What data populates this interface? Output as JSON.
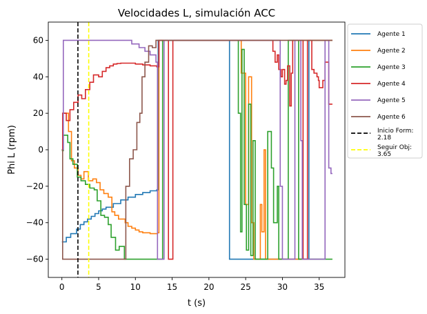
{
  "chart_data": {
    "type": "line",
    "title": "Velocidades L, simulación ACC",
    "xlabel": "t (s)",
    "ylabel": "Phi L (rpm)",
    "xlim": [
      -1.85,
      38.5
    ],
    "ylim": [
      -70,
      70
    ],
    "xticks": [
      0,
      5,
      10,
      15,
      20,
      25,
      30,
      35
    ],
    "yticks": [
      -60,
      -40,
      -20,
      0,
      20,
      40,
      60
    ],
    "grid": false,
    "legend_position": "outside-right",
    "series": [
      {
        "name": "Agente 1",
        "color": "#1f77b4",
        "step": true,
        "points": [
          [
            0,
            -50.5
          ],
          [
            0.6,
            -48
          ],
          [
            1.2,
            -46
          ],
          [
            2.0,
            -43.5
          ],
          [
            2.5,
            -41
          ],
          [
            3.0,
            -39.5
          ],
          [
            3.5,
            -38
          ],
          [
            4.0,
            -36.5
          ],
          [
            4.5,
            -35
          ],
          [
            5.0,
            -33.5
          ],
          [
            5.5,
            -32.5
          ],
          [
            6.0,
            -31.5
          ],
          [
            7.0,
            -29.5
          ],
          [
            8.0,
            -27.5
          ],
          [
            9.0,
            -26
          ],
          [
            10.0,
            -24.5
          ],
          [
            11.0,
            -23.5
          ],
          [
            12.0,
            -22.5
          ],
          [
            12.9,
            -22
          ],
          [
            13.1,
            60
          ],
          [
            22.7,
            60
          ],
          [
            22.8,
            -60
          ],
          [
            33.5,
            -60
          ],
          [
            33.6,
            60
          ],
          [
            35.0,
            60
          ],
          [
            36.8,
            60
          ]
        ]
      },
      {
        "name": "Agente 2",
        "color": "#ff7f0e",
        "step": true,
        "points": [
          [
            0,
            0
          ],
          [
            0.1,
            20
          ],
          [
            0.9,
            10
          ],
          [
            1.3,
            -6
          ],
          [
            1.7,
            -10
          ],
          [
            2.2,
            -14
          ],
          [
            2.6,
            -16
          ],
          [
            3.0,
            -12
          ],
          [
            3.6,
            -17
          ],
          [
            4.2,
            -16
          ],
          [
            4.7,
            -18
          ],
          [
            5.2,
            -22
          ],
          [
            5.7,
            -24
          ],
          [
            6.3,
            -26
          ],
          [
            6.8,
            -34
          ],
          [
            7.2,
            -36
          ],
          [
            7.7,
            -38
          ],
          [
            8.4,
            -38
          ],
          [
            8.6,
            -40
          ],
          [
            9.0,
            -42
          ],
          [
            9.5,
            -43
          ],
          [
            10.0,
            -44
          ],
          [
            10.5,
            -45
          ],
          [
            11.0,
            -45.5
          ],
          [
            12.0,
            -46
          ],
          [
            13.0,
            -45.5
          ],
          [
            13.2,
            60
          ],
          [
            24.2,
            60
          ],
          [
            24.4,
            42
          ],
          [
            24.8,
            42
          ],
          [
            25.0,
            -30
          ],
          [
            25.4,
            40
          ],
          [
            25.8,
            -40
          ],
          [
            26.1,
            -60
          ],
          [
            26.8,
            -60
          ],
          [
            27.0,
            -30
          ],
          [
            27.2,
            -45
          ],
          [
            27.5,
            0
          ],
          [
            27.7,
            -60
          ],
          [
            32.6,
            -60
          ],
          [
            32.8,
            60
          ],
          [
            36.8,
            60
          ]
        ]
      },
      {
        "name": "Agente 3",
        "color": "#2ca02c",
        "step": true,
        "points": [
          [
            0,
            -0.5
          ],
          [
            0.2,
            8
          ],
          [
            0.8,
            4
          ],
          [
            1.1,
            -5
          ],
          [
            1.5,
            -8
          ],
          [
            2.1,
            -15
          ],
          [
            2.6,
            -17
          ],
          [
            3.2,
            -19
          ],
          [
            3.8,
            -21
          ],
          [
            4.4,
            -22
          ],
          [
            4.8,
            -28
          ],
          [
            5.3,
            -36
          ],
          [
            5.8,
            -37
          ],
          [
            6.3,
            -41
          ],
          [
            6.7,
            -48
          ],
          [
            7.3,
            -55
          ],
          [
            7.8,
            -53
          ],
          [
            8.5,
            -60
          ],
          [
            13.4,
            -60
          ],
          [
            13.7,
            60
          ],
          [
            23.7,
            60
          ],
          [
            24.0,
            20
          ],
          [
            24.3,
            -45
          ],
          [
            24.5,
            55
          ],
          [
            24.8,
            -30
          ],
          [
            25.1,
            -55
          ],
          [
            25.4,
            25
          ],
          [
            25.7,
            -58
          ],
          [
            26.0,
            5
          ],
          [
            26.3,
            -60
          ],
          [
            27.7,
            -60
          ],
          [
            28.0,
            10
          ],
          [
            28.5,
            -10
          ],
          [
            28.8,
            -40
          ],
          [
            29.3,
            -20
          ],
          [
            29.5,
            -60
          ],
          [
            30.5,
            -60
          ],
          [
            30.8,
            60
          ],
          [
            32.0,
            60
          ],
          [
            32.2,
            -60
          ],
          [
            36.8,
            -60
          ]
        ]
      },
      {
        "name": "Agente 4",
        "color": "#d62728",
        "step": true,
        "points": [
          [
            0,
            0
          ],
          [
            0.1,
            20
          ],
          [
            0.6,
            16
          ],
          [
            1.1,
            22
          ],
          [
            1.6,
            26
          ],
          [
            2.2,
            30
          ],
          [
            2.7,
            28
          ],
          [
            3.2,
            33
          ],
          [
            3.8,
            37
          ],
          [
            4.3,
            41
          ],
          [
            5.0,
            40
          ],
          [
            5.5,
            43
          ],
          [
            6.0,
            45
          ],
          [
            6.5,
            46
          ],
          [
            7.0,
            47
          ],
          [
            7.5,
            47.3
          ],
          [
            8.0,
            47.5
          ],
          [
            9.0,
            47.5
          ],
          [
            10.0,
            47
          ],
          [
            11.0,
            46.5
          ],
          [
            12.0,
            46
          ],
          [
            12.9,
            45.5
          ],
          [
            13.2,
            60
          ],
          [
            14.3,
            60
          ],
          [
            14.5,
            -60
          ],
          [
            14.8,
            -60
          ],
          [
            15.1,
            60
          ],
          [
            28.5,
            60
          ],
          [
            28.7,
            54
          ],
          [
            29.0,
            48
          ],
          [
            29.3,
            52
          ],
          [
            29.5,
            44
          ],
          [
            29.8,
            40
          ],
          [
            30.0,
            44
          ],
          [
            30.3,
            36
          ],
          [
            30.5,
            38
          ],
          [
            30.7,
            46
          ],
          [
            31.0,
            24
          ],
          [
            31.2,
            42
          ],
          [
            31.4,
            60
          ],
          [
            32.6,
            60
          ],
          [
            32.8,
            -60
          ],
          [
            33.2,
            -60
          ],
          [
            33.4,
            60
          ],
          [
            34.0,
            44
          ],
          [
            34.3,
            42
          ],
          [
            34.5,
            42
          ],
          [
            34.7,
            40
          ],
          [
            34.9,
            38
          ],
          [
            35.0,
            34
          ],
          [
            35.5,
            38
          ],
          [
            35.8,
            48
          ],
          [
            36.3,
            25
          ],
          [
            36.8,
            25
          ]
        ]
      },
      {
        "name": "Agente 5",
        "color": "#9467bd",
        "step": true,
        "points": [
          [
            0,
            0
          ],
          [
            0.2,
            60
          ],
          [
            9.0,
            60
          ],
          [
            9.5,
            58
          ],
          [
            10.5,
            56
          ],
          [
            11.3,
            54
          ],
          [
            12.0,
            52
          ],
          [
            12.8,
            48
          ],
          [
            13.0,
            -60
          ],
          [
            13.7,
            -60
          ],
          [
            13.9,
            60
          ],
          [
            29.5,
            60
          ],
          [
            29.7,
            -20
          ],
          [
            30.0,
            -60
          ],
          [
            31.5,
            -60
          ],
          [
            31.7,
            60
          ],
          [
            32.3,
            60
          ],
          [
            32.5,
            5
          ],
          [
            32.7,
            -60
          ],
          [
            35.6,
            -60
          ],
          [
            35.8,
            60
          ],
          [
            36.3,
            -10
          ],
          [
            36.6,
            -13
          ],
          [
            36.8,
            -13
          ]
        ]
      },
      {
        "name": "Agente 6",
        "color": "#8c564b",
        "step": true,
        "points": [
          [
            0,
            0
          ],
          [
            0.1,
            -60
          ],
          [
            8.5,
            -60
          ],
          [
            8.7,
            -20
          ],
          [
            9.0,
            -20
          ],
          [
            9.2,
            -5
          ],
          [
            9.7,
            0
          ],
          [
            10.2,
            15
          ],
          [
            10.6,
            20
          ],
          [
            10.9,
            40
          ],
          [
            11.3,
            48
          ],
          [
            11.8,
            57
          ],
          [
            12.3,
            56
          ],
          [
            12.8,
            60
          ],
          [
            14.5,
            60
          ],
          [
            35.0,
            60
          ],
          [
            36.8,
            60
          ]
        ]
      },
      {
        "name": "Inicio Form:\n2.18",
        "color": "#000000",
        "vline": 2.18,
        "dash": true
      },
      {
        "name": "Seguir Obj:\n3.65",
        "color": "#ffff00",
        "vline": 3.65,
        "dash": true
      }
    ]
  }
}
